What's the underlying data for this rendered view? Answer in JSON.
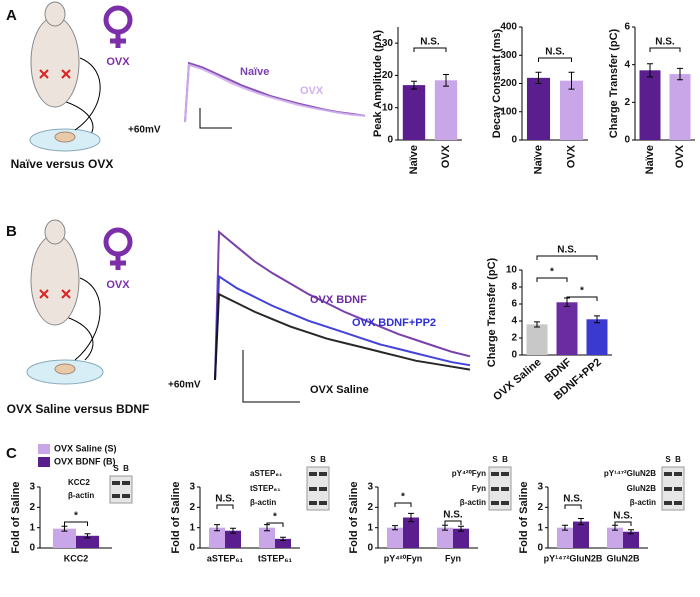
{
  "panel_labels": [
    "A",
    "B",
    "C"
  ],
  "illustrations": [
    {
      "label": "OVX",
      "caption": "Naïve versus OVX"
    },
    {
      "label": "OVX",
      "caption": "OVX Saline versus BDNF"
    }
  ],
  "blots": [
    {
      "lanes": [
        "S",
        "B"
      ],
      "labels": [
        "KCC2",
        "β-actin"
      ]
    },
    {
      "lanes": [
        "S",
        "B"
      ],
      "labels": [
        "aSTEP₆₁",
        "tSTEP₆₁",
        "β-actin"
      ]
    },
    {
      "lanes": [
        "S",
        "B"
      ],
      "labels": [
        "pY⁴²⁰Fyn",
        "Fyn",
        "β-actin"
      ]
    },
    {
      "lanes": [
        "S",
        "B"
      ],
      "labels": [
        "pY¹⁴⁷²GluN2B",
        "GluN2B",
        "β-actin"
      ]
    }
  ],
  "chart_data": [
    {
      "type": "line",
      "ylim": [
        0,
        100
      ],
      "annotations": [
        "+60mV"
      ],
      "series": [
        {
          "name": "Naïve",
          "color": "#7b3fb0",
          "values": [
            0,
            95,
            88,
            78,
            68,
            58,
            50,
            42,
            36,
            30,
            25,
            20,
            16,
            13,
            10
          ]
        },
        {
          "name": "OVX",
          "color": "#d1b0ee",
          "values": [
            0,
            92,
            85,
            75,
            64,
            55,
            47,
            40,
            34,
            28,
            23,
            19,
            15,
            12,
            10
          ]
        }
      ]
    },
    {
      "type": "bar",
      "ylabel": "Peak Amplitude (pA)",
      "categories": [
        "Naïve",
        "OVX"
      ],
      "values": [
        17,
        18.5
      ],
      "errors": [
        1.2,
        1.8
      ],
      "colors": [
        "#5b1e8f",
        "#c9a6e8"
      ],
      "ylim": [
        0,
        35
      ],
      "yticks": [
        0,
        10,
        20,
        30
      ],
      "annotations": [
        "N.S."
      ]
    },
    {
      "type": "bar",
      "ylabel": "Decay Constant (ms)",
      "categories": [
        "Naïve",
        "OVX"
      ],
      "values": [
        220,
        210
      ],
      "errors": [
        20,
        30
      ],
      "colors": [
        "#5b1e8f",
        "#c9a6e8"
      ],
      "ylim": [
        0,
        400
      ],
      "yticks": [
        0,
        100,
        200,
        300,
        400
      ],
      "annotations": [
        "N.S."
      ]
    },
    {
      "type": "bar",
      "ylabel": "Charge Transfer (pC)",
      "categories": [
        "Naïve",
        "OVX"
      ],
      "values": [
        3.7,
        3.5
      ],
      "errors": [
        0.35,
        0.3
      ],
      "colors": [
        "#5b1e8f",
        "#c9a6e8"
      ],
      "ylim": [
        0,
        6
      ],
      "yticks": [
        0,
        2,
        4,
        6
      ],
      "annotations": [
        "N.S."
      ]
    },
    {
      "type": "line",
      "ylim": [
        0,
        100
      ],
      "annotations": [
        "+60mV"
      ],
      "series": [
        {
          "name": "OVX BDNF",
          "color": "#6a2ca0",
          "values": [
            0,
            100,
            90,
            80,
            72,
            65,
            58,
            52,
            46,
            41,
            36,
            31,
            27,
            23,
            19,
            16
          ]
        },
        {
          "name": "OVX BDNF+PP2",
          "color": "#2f2fd6",
          "values": [
            0,
            70,
            62,
            56,
            50,
            45,
            40,
            36,
            32,
            28,
            24,
            21,
            18,
            15,
            12,
            10
          ]
        },
        {
          "name": "OVX Saline",
          "color": "#111111",
          "values": [
            0,
            58,
            52,
            46,
            41,
            36,
            32,
            28,
            25,
            22,
            19,
            16,
            13,
            11,
            9,
            7
          ]
        }
      ]
    },
    {
      "type": "bar",
      "ylabel": "Charge Transfer (pC)",
      "categories": [
        "OVX Saline",
        "BDNF",
        "BDNF+PP2"
      ],
      "values": [
        3.6,
        6.2,
        4.2
      ],
      "errors": [
        0.3,
        0.5,
        0.4
      ],
      "colors": [
        "#c8c8c8",
        "#6a2ca0",
        "#3a3ad0"
      ],
      "ylim": [
        0,
        10
      ],
      "yticks": [
        0,
        2,
        4,
        6,
        8,
        10
      ],
      "annotations": [
        "N.S.",
        "*",
        "*"
      ]
    },
    {
      "type": "grouped",
      "ylabel": "Fold of Saline",
      "categories": [
        "KCC2"
      ],
      "ylim": [
        0,
        3
      ],
      "yticks": [
        0,
        1,
        2,
        3
      ],
      "annotations": [
        "*"
      ],
      "series": [
        {
          "name": "OVX Saline (S)",
          "color": "#c9a6e8",
          "values": [
            0.95
          ],
          "errors": [
            0.12
          ]
        },
        {
          "name": "OVX BDNF (B)",
          "color": "#5b1e8f",
          "values": [
            0.6
          ],
          "errors": [
            0.1
          ]
        }
      ]
    },
    {
      "type": "grouped",
      "ylabel": "Fold of Saline",
      "categories": [
        "aSTEP₆₁",
        "tSTEP₆₁"
      ],
      "ylim": [
        0,
        3
      ],
      "yticks": [
        0,
        1,
        2,
        3
      ],
      "annotations": [
        "N.S.",
        "*"
      ],
      "series": [
        {
          "color": "#c9a6e8",
          "values": [
            1.0,
            1.0
          ],
          "errors": [
            0.15,
            0.15
          ]
        },
        {
          "color": "#5b1e8f",
          "values": [
            0.85,
            0.45
          ],
          "errors": [
            0.12,
            0.08
          ]
        }
      ]
    },
    {
      "type": "grouped",
      "ylabel": "Fold of Saline",
      "categories": [
        "pY⁴²⁰Fyn",
        "Fyn"
      ],
      "ylim": [
        0,
        3
      ],
      "yticks": [
        0,
        1,
        2,
        3
      ],
      "annotations": [
        "*",
        "N.S."
      ],
      "series": [
        {
          "color": "#c9a6e8",
          "values": [
            1.0,
            1.0
          ],
          "errors": [
            0.1,
            0.12
          ]
        },
        {
          "color": "#5b1e8f",
          "values": [
            1.5,
            0.95
          ],
          "errors": [
            0.2,
            0.12
          ]
        }
      ]
    },
    {
      "type": "grouped",
      "ylabel": "Fold of Saline",
      "categories": [
        "pY¹⁴⁷²GluN2B",
        "GluN2B"
      ],
      "ylim": [
        0,
        3
      ],
      "yticks": [
        0,
        1,
        2,
        3
      ],
      "annotations": [
        "N.S.",
        "N.S."
      ],
      "series": [
        {
          "color": "#c9a6e8",
          "values": [
            1.0,
            1.0
          ],
          "errors": [
            0.12,
            0.12
          ]
        },
        {
          "color": "#5b1e8f",
          "values": [
            1.3,
            0.8
          ],
          "errors": [
            0.15,
            0.1
          ]
        }
      ]
    }
  ]
}
